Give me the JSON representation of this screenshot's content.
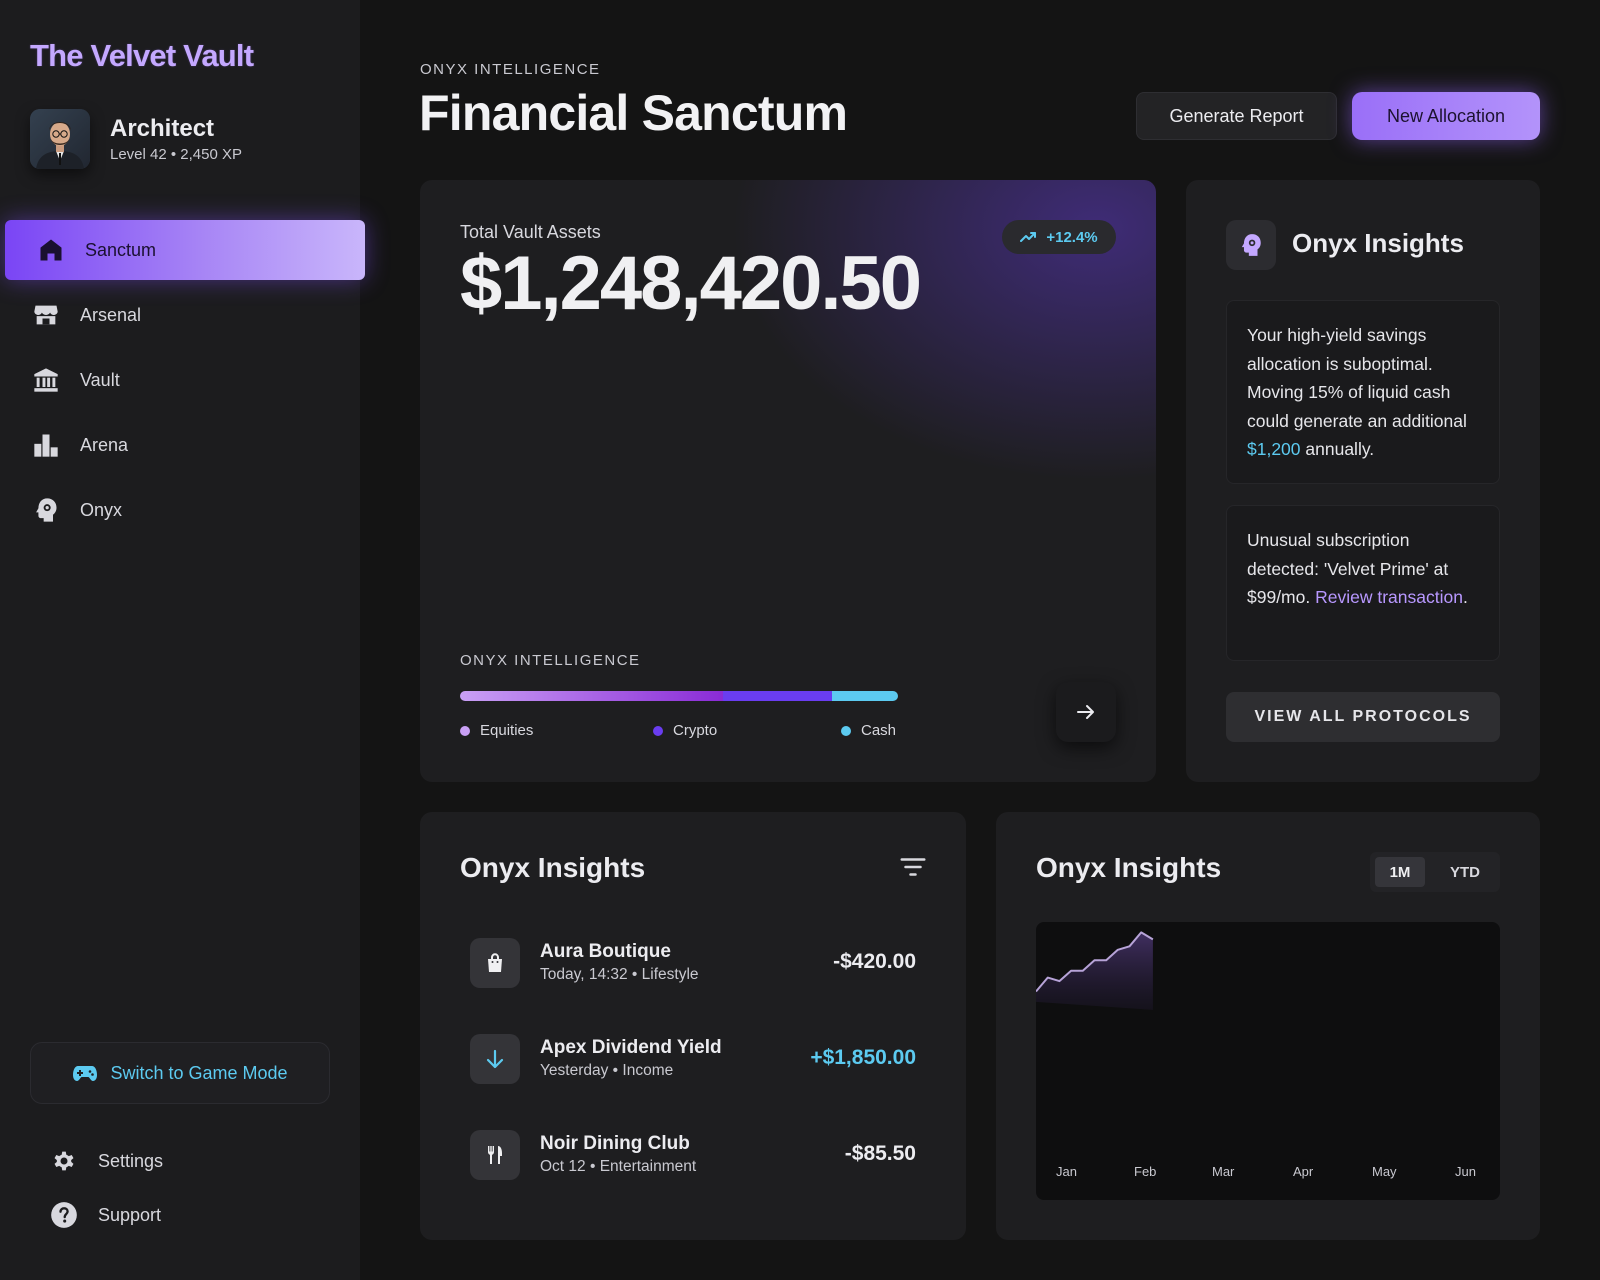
{
  "brand": "The Velvet Vault",
  "profile": {
    "name": "Architect",
    "level": "Level 42 • 2,450 XP"
  },
  "nav": [
    {
      "label": "Sanctum",
      "icon": "home-icon"
    },
    {
      "label": "Arsenal",
      "icon": "storefront-icon"
    },
    {
      "label": "Vault",
      "icon": "bank-icon"
    },
    {
      "label": "Arena",
      "icon": "leaderboard-icon"
    },
    {
      "label": "Onyx",
      "icon": "brain-icon"
    }
  ],
  "game_mode": {
    "label": "Switch to Game Mode",
    "icon": "gamepad-icon"
  },
  "footer_links": {
    "settings": "Settings",
    "support": "Support"
  },
  "header": {
    "eyebrow": "ONYX INTELLIGENCE",
    "title": "Financial Sanctum",
    "generate_report": "Generate Report",
    "new_allocation": "New Allocation"
  },
  "assets": {
    "label": "Total Vault Assets",
    "value": "$1,248,420.50",
    "trend": "+12.4%",
    "allocation_title": "ONYX INTELLIGENCE",
    "allocation": [
      {
        "label": "Equities",
        "share": 0.6,
        "color": "#c9a0f5"
      },
      {
        "label": "Crypto",
        "share": 0.25,
        "color": "#6a3df0"
      },
      {
        "label": "Cash",
        "share": 0.15,
        "color": "#5ccaf0"
      }
    ]
  },
  "insights": {
    "title": "Onyx Insights",
    "tip1": {
      "before": "Your high-yield savings allocation is suboptimal. Moving 15% of liquid cash could generate an additional ",
      "highlight": "$1,200",
      "after": " annually."
    },
    "tip2": {
      "before": "Unusual subscription detected: 'Velvet Prime' at $99/mo. ",
      "link": "Review transaction",
      "after": "."
    },
    "button": "VIEW ALL PROTOCOLS"
  },
  "transactions": {
    "title": "Onyx Insights",
    "items": [
      {
        "name": "Aura Boutique",
        "meta": "Today, 14:32 • Lifestyle",
        "amount": "-$420.00",
        "icon": "shopping-bag-icon"
      },
      {
        "name": "Apex Dividend Yield",
        "meta": "Yesterday • Income",
        "amount": "+$1,850.00",
        "icon": "arrow-down-icon"
      },
      {
        "name": "Noir Dining Club",
        "meta": "Oct 12 • Entertainment",
        "amount": "-$85.50",
        "icon": "restaurant-icon"
      }
    ]
  },
  "performance": {
    "title": "Onyx Insights",
    "ranges": [
      "1M",
      "YTD"
    ],
    "active_range": "1M"
  },
  "chart_data": {
    "type": "area",
    "title": "Onyx Insights",
    "categories": [
      "Jan",
      "Feb",
      "Mar",
      "Apr",
      "May",
      "Jun"
    ],
    "x": [
      0,
      0.15,
      0.3,
      0.45,
      0.6,
      0.75,
      0.9,
      1.05,
      1.2,
      1.35,
      1.5
    ],
    "values": [
      0,
      4,
      3,
      6,
      6,
      9,
      9,
      12,
      13,
      17,
      15
    ],
    "ylim": [
      -60,
      20
    ],
    "grid": false,
    "legend": "none"
  }
}
